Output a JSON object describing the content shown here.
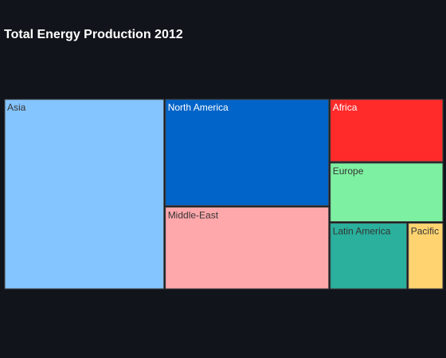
{
  "chart_data": {
    "type": "treemap",
    "title": "Total Energy Production 2012",
    "items": [
      {
        "label": "Asia",
        "value": 38,
        "color": "#85c5ff",
        "text_color": "#333333"
      },
      {
        "label": "North America",
        "value": 22,
        "color": "#0064c8",
        "text_color": "#ffffff"
      },
      {
        "label": "Middle-East",
        "value": 17,
        "color": "#ffa8ac",
        "text_color": "#333333"
      },
      {
        "label": "Africa",
        "value": 9,
        "color": "#ff2a2a",
        "text_color": "#ffffff"
      },
      {
        "label": "Europe",
        "value": 8.5,
        "color": "#7ef0a1",
        "text_color": "#333333"
      },
      {
        "label": "Latin America",
        "value": 6.5,
        "color": "#2ab09c",
        "text_color": "#333333"
      },
      {
        "label": "Pacific",
        "value": 3,
        "color": "#ffd470",
        "text_color": "#333333"
      }
    ]
  }
}
